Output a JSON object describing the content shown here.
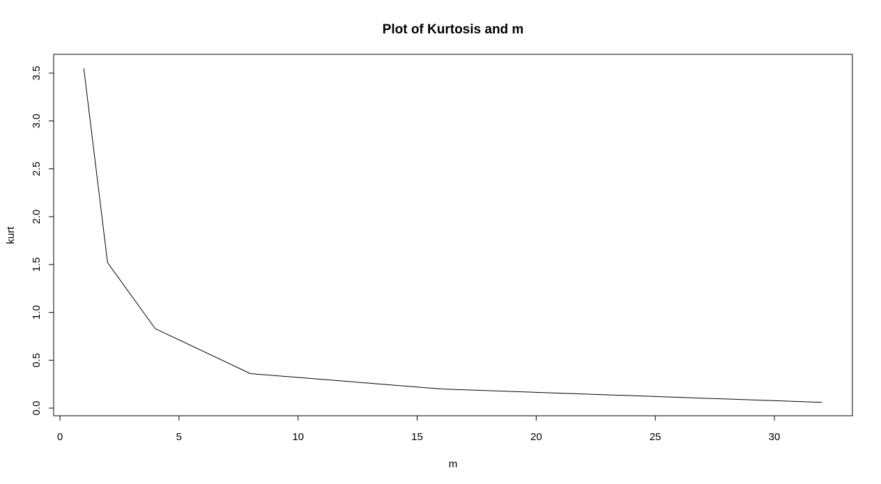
{
  "chart_data": {
    "type": "line",
    "title": "Plot of Kurtosis and m",
    "xlabel": "m",
    "ylabel": "kurt",
    "x": [
      1,
      2,
      4,
      8,
      16,
      32
    ],
    "series": [
      {
        "values": [
          3.55,
          1.52,
          0.83,
          0.36,
          0.2,
          0.06
        ]
      }
    ],
    "xlim": [
      0,
      33
    ],
    "ylim": [
      0,
      3.6
    ],
    "xticks": [
      0,
      5,
      10,
      15,
      20,
      25,
      30
    ],
    "xtick_labels": [
      "0",
      "5",
      "10",
      "15",
      "20",
      "25",
      "30"
    ],
    "yticks": [
      0,
      0.5,
      1,
      1.5,
      2,
      2.5,
      3,
      3.5
    ],
    "ytick_labels": [
      "0.0",
      "0.5",
      "1.0",
      "1.5",
      "2.0",
      "2.5",
      "3.0",
      "3.5"
    ],
    "grid": false,
    "line_color": "#000000"
  }
}
